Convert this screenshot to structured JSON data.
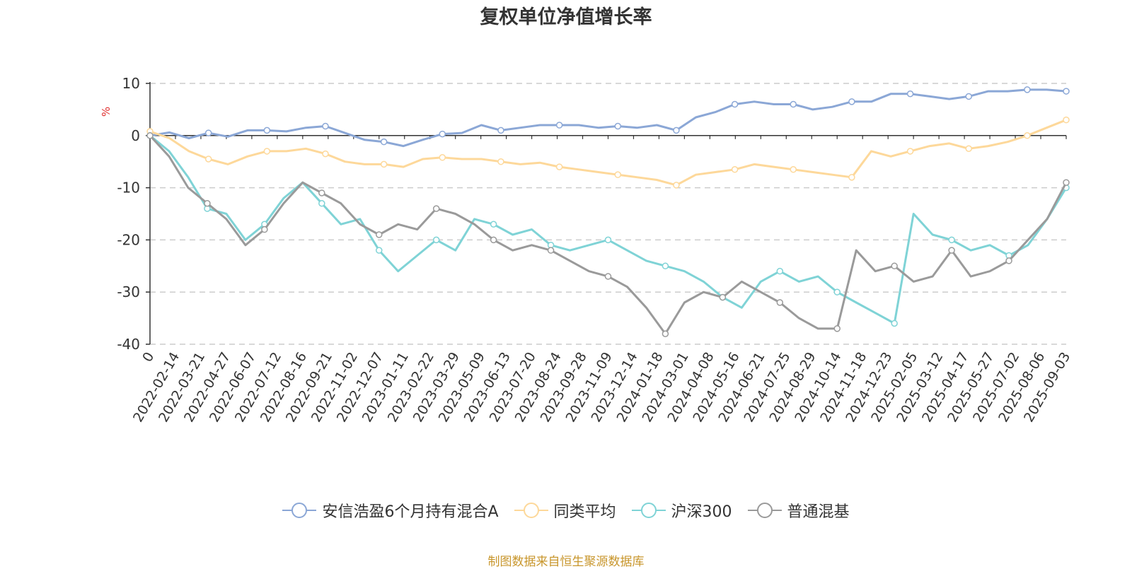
{
  "chart_data": {
    "type": "line",
    "title": "复权单位净值增长率",
    "ylabel": "%",
    "ylim": [
      -40,
      10
    ],
    "yticks": [
      10,
      0,
      -10,
      -20,
      -30,
      -40
    ],
    "grid": true,
    "legend_position": "bottom",
    "x_tick_labels": [
      "0",
      "2022-02-14",
      "2022-03-21",
      "2022-04-27",
      "2022-06-07",
      "2022-07-12",
      "2022-08-16",
      "2022-09-21",
      "2022-11-02",
      "2022-12-07",
      "2023-01-11",
      "2023-02-22",
      "2023-03-29",
      "2023-05-09",
      "2023-06-13",
      "2023-07-20",
      "2023-08-24",
      "2023-09-28",
      "2023-11-09",
      "2023-12-14",
      "2024-01-18",
      "2024-03-01",
      "2024-04-08",
      "2024-05-16",
      "2024-06-21",
      "2024-07-25",
      "2024-08-29",
      "2024-10-14",
      "2024-11-18",
      "2024-12-23",
      "2025-02-05",
      "2025-03-12",
      "2025-04-17",
      "2025-05-27",
      "2025-07-02",
      "2025-08-06",
      "2025-09-03"
    ],
    "series": [
      {
        "name": "安信浩盈6个月持有混合A",
        "color": "#8ba7d6",
        "values": [
          0,
          0.6,
          -0.5,
          0.5,
          -0.2,
          1,
          1,
          0.8,
          1.5,
          1.8,
          0.5,
          -0.8,
          -1.2,
          -2,
          -0.8,
          0.3,
          0.5,
          2,
          1,
          1.5,
          2,
          2,
          2,
          1.5,
          1.8,
          1.5,
          2,
          1,
          3.5,
          4.5,
          6,
          6.5,
          6,
          6,
          5,
          5.5,
          6.5,
          6.5,
          8,
          8,
          7.5,
          7,
          7.5,
          8.5,
          8.5,
          8.8,
          8.8,
          8.5
        ]
      },
      {
        "name": "同类平均",
        "color": "#fdd89a",
        "values": [
          0.8,
          -0.5,
          -3,
          -4.5,
          -5.5,
          -4,
          -3,
          -3,
          -2.5,
          -3.5,
          -5,
          -5.5,
          -5.5,
          -6,
          -4.5,
          -4.2,
          -4.5,
          -4.5,
          -5,
          -5.5,
          -5.2,
          -6,
          -6.5,
          -7,
          -7.5,
          -8,
          -8.5,
          -9.5,
          -7.5,
          -7,
          -6.5,
          -5.5,
          -6,
          -6.5,
          -7,
          -7.5,
          -8,
          -3,
          -4,
          -3,
          -2,
          -1.5,
          -2.5,
          -2,
          -1.2,
          0,
          1.5,
          3
        ]
      },
      {
        "name": "沪深300",
        "color": "#7fd3d6",
        "values": [
          0,
          -3,
          -8,
          -14,
          -15,
          -20,
          -17,
          -12,
          -9,
          -13,
          -17,
          -16,
          -22,
          -26,
          -23,
          -20,
          -22,
          -16,
          -17,
          -19,
          -18,
          -21,
          -22,
          -21,
          -20,
          -22,
          -24,
          -25,
          -26,
          -28,
          -31,
          -33,
          -28,
          -26,
          -28,
          -27,
          -30,
          -32,
          -34,
          -36,
          -15,
          -19,
          -20,
          -22,
          -21,
          -23,
          -21,
          -16,
          -10
        ]
      },
      {
        "name": "普通混基",
        "color": "#9a9a9a",
        "values": [
          0,
          -4,
          -10,
          -13,
          -16,
          -21,
          -18,
          -13,
          -9,
          -11,
          -13,
          -17,
          -19,
          -17,
          -18,
          -14,
          -15,
          -17,
          -20,
          -22,
          -21,
          -22,
          -24,
          -26,
          -27,
          -29,
          -33,
          -38,
          -32,
          -30,
          -31,
          -28,
          -30,
          -32,
          -35,
          -37,
          -37,
          -22,
          -26,
          -25,
          -28,
          -27,
          -22,
          -27,
          -26,
          -24,
          -20,
          -16,
          -9
        ]
      }
    ]
  },
  "legend": [
    {
      "label": "安信浩盈6个月持有混合A",
      "color": "#8ba7d6"
    },
    {
      "label": "同类平均",
      "color": "#fdd89a"
    },
    {
      "label": "沪深300",
      "color": "#7fd3d6"
    },
    {
      "label": "普通混基",
      "color": "#9a9a9a"
    }
  ],
  "footer": "制图数据来自恒生聚源数据库"
}
